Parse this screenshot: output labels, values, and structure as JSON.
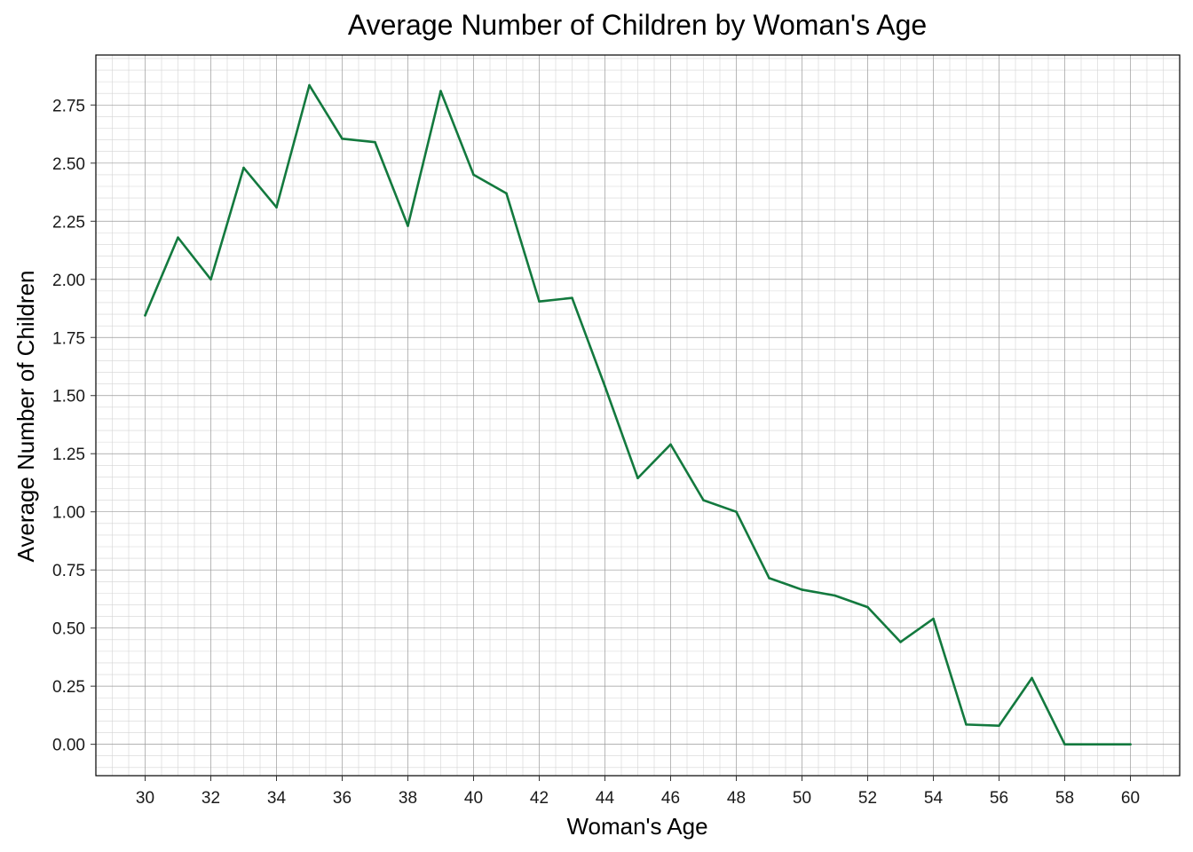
{
  "chart_data": {
    "type": "line",
    "title": "Average Number of Children by Woman's Age",
    "xlabel": "Woman's Age",
    "ylabel": "Average Number of Children",
    "xlim": [
      28.5,
      61.5
    ],
    "ylim": [
      -0.135,
      2.965
    ],
    "x_ticks": [
      30,
      32,
      34,
      36,
      38,
      40,
      42,
      44,
      46,
      48,
      50,
      52,
      54,
      56,
      58,
      60
    ],
    "y_ticks": [
      0.0,
      0.25,
      0.5,
      0.75,
      1.0,
      1.25,
      1.5,
      1.75,
      2.0,
      2.25,
      2.5,
      2.75
    ],
    "x_tick_labels": [
      "30",
      "32",
      "34",
      "36",
      "38",
      "40",
      "42",
      "44",
      "46",
      "48",
      "50",
      "52",
      "54",
      "56",
      "58",
      "60"
    ],
    "y_tick_labels": [
      "0.00",
      "0.25",
      "0.50",
      "0.75",
      "1.00",
      "1.25",
      "1.50",
      "1.75",
      "2.00",
      "2.25",
      "2.50",
      "2.75"
    ],
    "grid": true,
    "legend": false,
    "series": [
      {
        "color": "#13793e",
        "x": [
          30,
          31,
          32,
          33,
          34,
          35,
          36,
          37,
          38,
          39,
          40,
          41,
          42,
          43,
          44,
          45,
          46,
          47,
          48,
          49,
          50,
          51,
          52,
          53,
          54,
          55,
          56,
          57,
          58,
          59,
          60
        ],
        "values": [
          1.845,
          2.18,
          2.0,
          2.48,
          2.31,
          2.835,
          2.605,
          2.59,
          2.23,
          2.81,
          2.45,
          2.37,
          1.905,
          1.92,
          1.54,
          1.145,
          1.29,
          1.05,
          1.0,
          0.715,
          0.665,
          0.64,
          0.59,
          0.44,
          0.54,
          0.085,
          0.08,
          0.285,
          0.0,
          0.0,
          0.0
        ]
      }
    ]
  }
}
